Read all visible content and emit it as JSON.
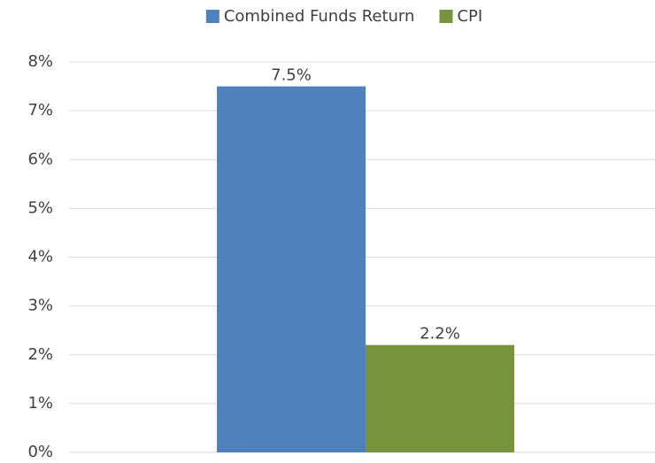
{
  "chart_data": {
    "type": "bar",
    "categories": [
      null
    ],
    "series": [
      {
        "name": "Combined Funds Return",
        "color": "#4f81bd",
        "values": [
          7.5
        ],
        "value_labels": [
          "7.5%"
        ]
      },
      {
        "name": "CPI",
        "color": "#77933c",
        "values": [
          2.2
        ],
        "value_labels": [
          "2.2%"
        ]
      }
    ],
    "ylim": [
      0,
      8
    ],
    "yticks": [
      {
        "value": 0,
        "label": "0%"
      },
      {
        "value": 1,
        "label": "1%"
      },
      {
        "value": 2,
        "label": "2%"
      },
      {
        "value": 3,
        "label": "3%"
      },
      {
        "value": 4,
        "label": "4%"
      },
      {
        "value": 5,
        "label": "5%"
      },
      {
        "value": 6,
        "label": "6%"
      },
      {
        "value": 7,
        "label": "7%"
      },
      {
        "value": 8,
        "label": "8%"
      }
    ],
    "grid": true,
    "legend": "top"
  }
}
